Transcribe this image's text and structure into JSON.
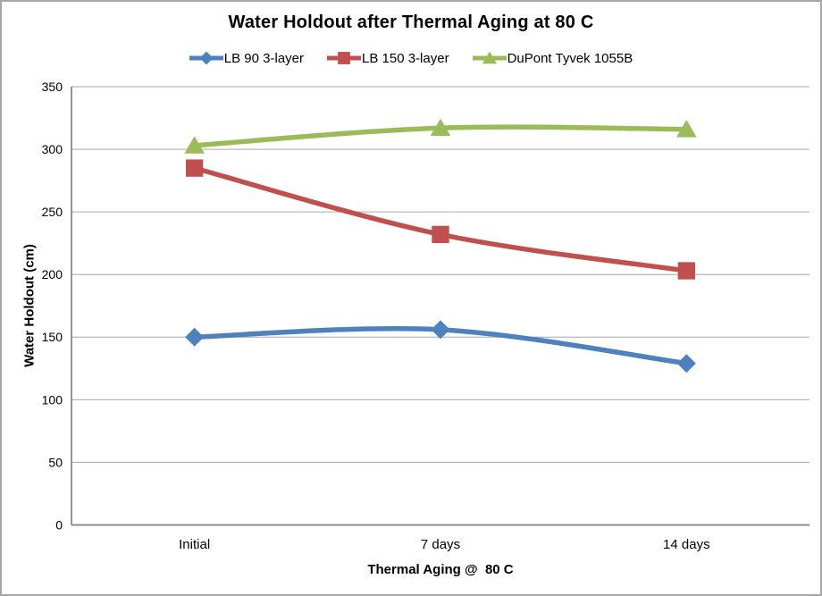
{
  "window": {
    "background": "#FFFFFF",
    "border_color": "#A6A6A6"
  },
  "chart_data": {
    "type": "line",
    "title": "Water Holdout after Thermal Aging at 80 C",
    "xlabel": "Thermal Aging @  80 C",
    "ylabel": "Water Holdout (cm)",
    "categories": [
      "Initial",
      "7 days",
      "14 days"
    ],
    "series": [
      {
        "name": "LB 90 3-layer",
        "color": "#4F81BD",
        "marker": "diamond",
        "values": [
          150,
          156,
          129
        ]
      },
      {
        "name": "LB 150 3-layer",
        "color": "#C0504D",
        "marker": "square",
        "values": [
          285,
          232,
          203
        ]
      },
      {
        "name": "DuPont Tyvek 1055B",
        "color": "#9BBB59",
        "marker": "triangle",
        "values": [
          303,
          317,
          316
        ]
      }
    ],
    "ylim": [
      0,
      350
    ],
    "yticks": [
      0,
      50,
      100,
      150,
      200,
      250,
      300,
      350
    ],
    "grid": true,
    "smoothed": true,
    "legend_position": "top",
    "gridline_color": "#A6A6A6",
    "axis_color": "#808080",
    "text_color": "#000000"
  }
}
